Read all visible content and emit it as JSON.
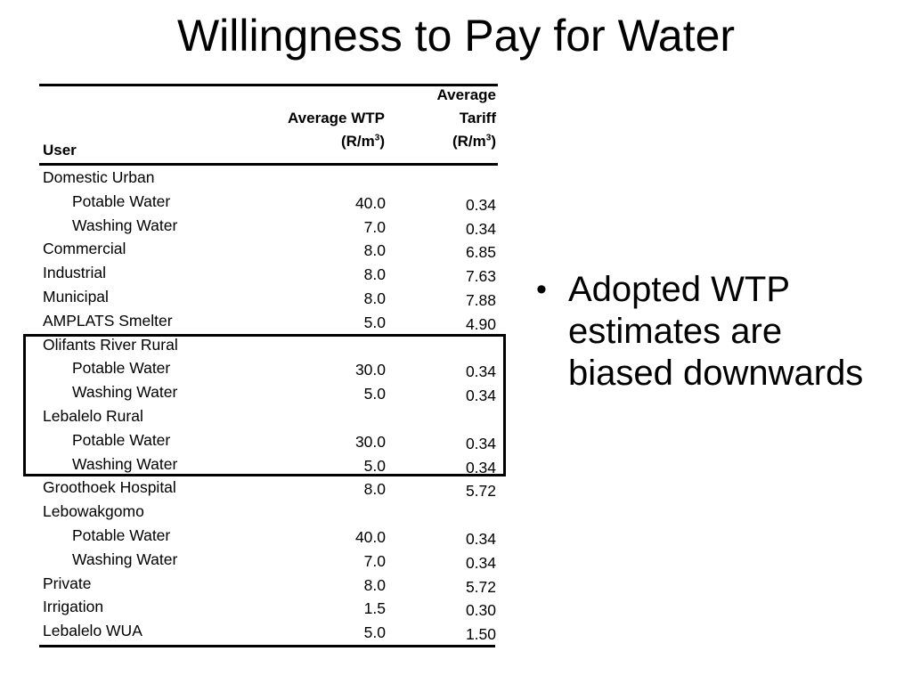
{
  "title": "Willingness to Pay for Water",
  "table": {
    "headers": {
      "user": "User",
      "wtp_line1": "Average WTP",
      "wtp_line2a": "(R/m",
      "wtp_sup": "3",
      "wtp_line2b": ")",
      "tariff_line1": "Average",
      "tariff_line2": "Tariff",
      "tariff_line3a": "(R/m",
      "tariff_sup": "3",
      "tariff_line3b": ")"
    },
    "rows": [
      {
        "user": "Domestic Urban",
        "indent": false,
        "wtp": "",
        "tariff": ""
      },
      {
        "user": "Potable Water",
        "indent": true,
        "wtp": "40.0",
        "tariff": "0.34"
      },
      {
        "user": "Washing Water",
        "indent": true,
        "wtp": "7.0",
        "tariff": "0.34"
      },
      {
        "user": "Commercial",
        "indent": false,
        "wtp": "8.0",
        "tariff": "6.85"
      },
      {
        "user": "Industrial",
        "indent": false,
        "wtp": "8.0",
        "tariff": "7.63"
      },
      {
        "user": "Municipal",
        "indent": false,
        "wtp": "8.0",
        "tariff": "7.88"
      },
      {
        "user": "AMPLATS Smelter",
        "indent": false,
        "wtp": "5.0",
        "tariff": "4.90"
      },
      {
        "user": "Olifants River Rural",
        "indent": false,
        "wtp": "",
        "tariff": ""
      },
      {
        "user": "Potable Water",
        "indent": true,
        "wtp": "30.0",
        "tariff": "0.34"
      },
      {
        "user": "Washing Water",
        "indent": true,
        "wtp": "5.0",
        "tariff": "0.34"
      },
      {
        "user": "Lebalelo Rural",
        "indent": false,
        "wtp": "",
        "tariff": ""
      },
      {
        "user": "Potable Water",
        "indent": true,
        "wtp": "30.0",
        "tariff": "0.34"
      },
      {
        "user": "Washing Water",
        "indent": true,
        "wtp": "5.0",
        "tariff": "0.34"
      },
      {
        "user": "Groothoek Hospital",
        "indent": false,
        "wtp": "8.0",
        "tariff": "5.72"
      },
      {
        "user": "Lebowakgomo",
        "indent": false,
        "wtp": "",
        "tariff": ""
      },
      {
        "user": "Potable Water",
        "indent": true,
        "wtp": "40.0",
        "tariff": "0.34"
      },
      {
        "user": "Washing Water",
        "indent": true,
        "wtp": "7.0",
        "tariff": "0.34"
      },
      {
        "user": "Private",
        "indent": false,
        "wtp": "8.0",
        "tariff": "5.72"
      },
      {
        "user": "Irrigation",
        "indent": false,
        "wtp": "1.5",
        "tariff": "0.30"
      },
      {
        "user": "Lebalelo WUA",
        "indent": false,
        "wtp": "5.0",
        "tariff": "1.50"
      }
    ]
  },
  "bullets": [
    "Adopted WTP estimates are biased downwards"
  ],
  "bullet_symbol": "•"
}
